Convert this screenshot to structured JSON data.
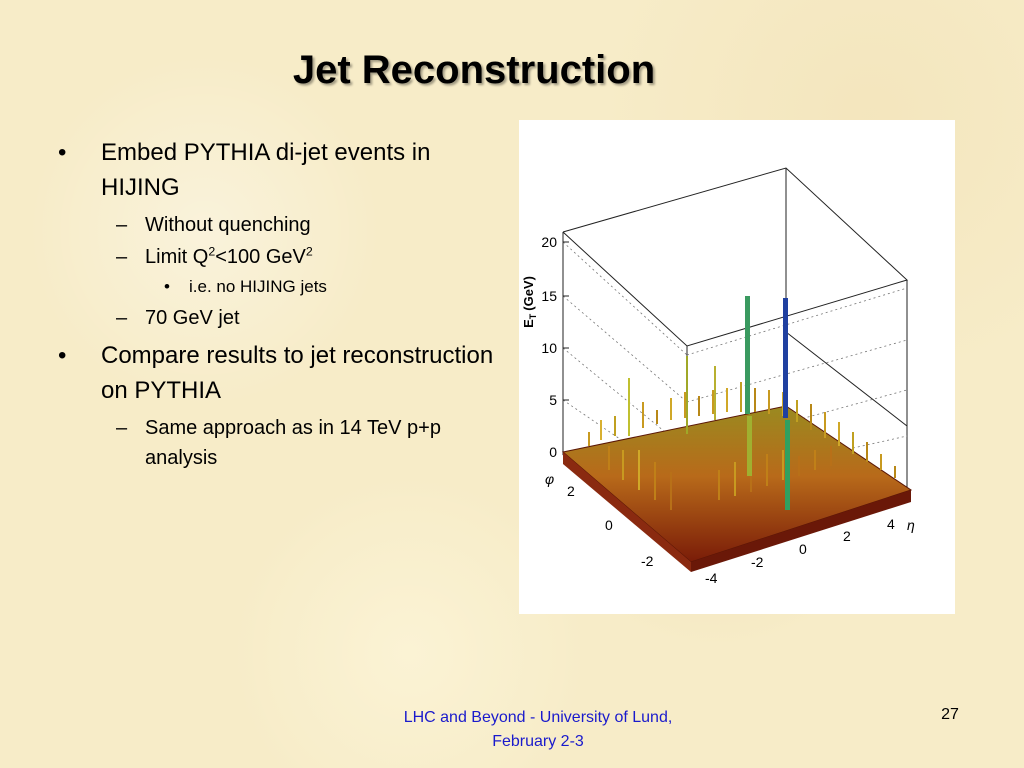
{
  "slide": {
    "title": "Jet Reconstruction",
    "bullets": {
      "b1": "Embed PYTHIA di-jet events in HIJING",
      "b1_sub1": "Without quenching",
      "b1_sub2_pre": "Limit Q",
      "b1_sub2_sup1": "2",
      "b1_sub2_mid": "<100 GeV",
      "b1_sub2_sup2": "2",
      "b1_sub2_sub": "i.e. no HIJING jets",
      "b1_sub3": "70 GeV jet",
      "b2": "Compare results to jet reconstruction on PYTHIA",
      "b2_sub1": "Same approach as in 14 TeV p+p analysis"
    },
    "bullet_marks": {
      "level1": "•",
      "level2": "–",
      "level3": "•"
    },
    "footer": {
      "line1": "LHC and Beyond - University of Lund,",
      "line2": "February 2-3"
    },
    "page_number": "27"
  },
  "figure": {
    "z_axis_label": "E",
    "z_axis_label_sub": "T",
    "z_axis_label_unit": "(GeV)",
    "phi_label": "φ",
    "eta_label": "η",
    "z_ticks": [
      "20",
      "15",
      "10",
      "5",
      "0"
    ],
    "phi_ticks": [
      "2",
      "0",
      "-2"
    ],
    "eta_ticks": [
      "-4",
      "-2",
      "0",
      "2",
      "4"
    ]
  }
}
